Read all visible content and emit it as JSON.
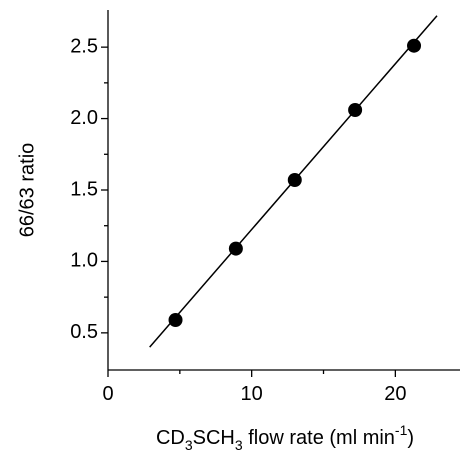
{
  "chart_data": {
    "type": "scatter",
    "y_label": "66/63 ratio",
    "x_label_parts": [
      "CD",
      "3",
      "SCH",
      "3",
      " flow rate (ml min",
      "-1",
      ")"
    ],
    "x": [
      4.7,
      8.9,
      13.0,
      17.2,
      21.3
    ],
    "values": [
      0.59,
      1.09,
      1.57,
      2.06,
      2.51
    ],
    "color": "#000000",
    "fit": {
      "x": [
        2.9,
        22.9
      ],
      "y": [
        0.4,
        2.72
      ],
      "color": "#000000"
    },
    "xlim": [
      0,
      24.5
    ],
    "ylim": [
      0.24,
      2.76
    ],
    "xticks": [
      0,
      10,
      20
    ],
    "xminorticks": [
      5,
      15
    ],
    "yticks": [
      0.5,
      {
        "value": 1,
        "label": "1.0"
      },
      1.5,
      {
        "value": 2,
        "label": "2.0"
      },
      2.5
    ],
    "yminorticks": [
      0.75,
      1.25,
      1.75,
      2.25
    ]
  }
}
